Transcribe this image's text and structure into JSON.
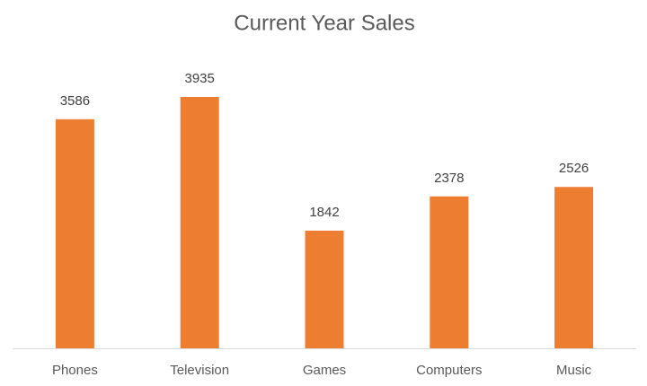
{
  "chart_data": {
    "type": "bar",
    "title": "Current Year Sales",
    "categories": [
      "Phones",
      "Television",
      "Games",
      "Computers",
      "Music"
    ],
    "values": [
      3586,
      3935,
      1842,
      2378,
      2526
    ],
    "color": "#ed7d31"
  }
}
